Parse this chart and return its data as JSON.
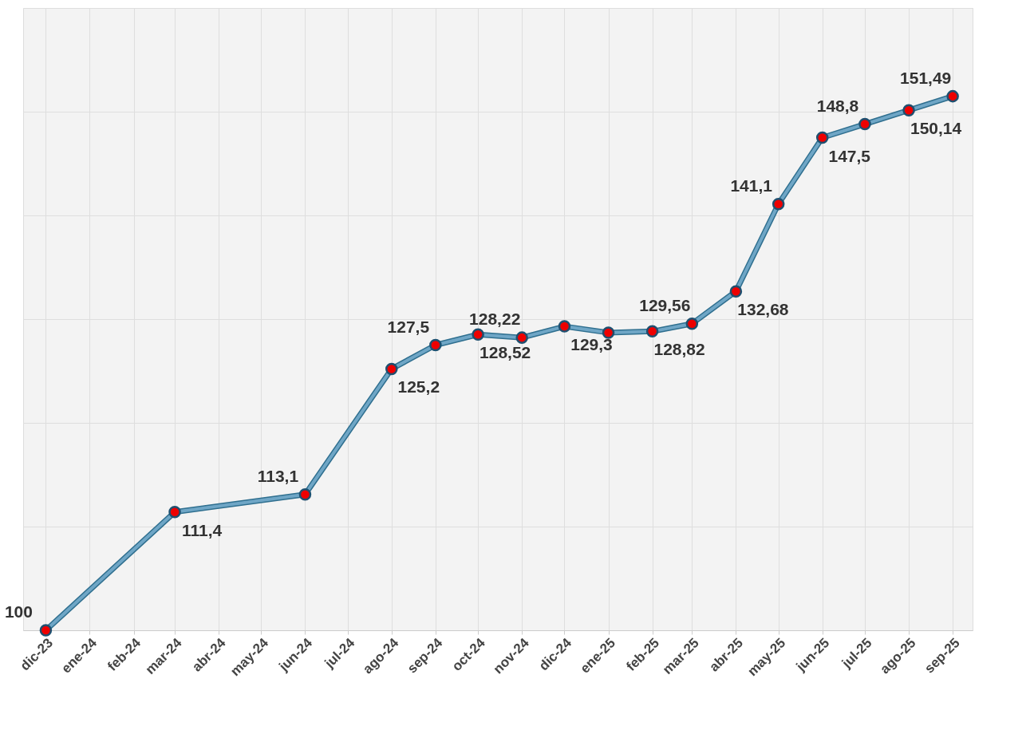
{
  "chart_data": {
    "type": "line",
    "x": [
      "2023-12",
      "2024-03",
      "2024-06",
      "2024-08",
      "2024-09",
      "2024-10",
      "2024-11",
      "2024-12",
      "2025-01",
      "2025-02",
      "2025-03",
      "2025-04",
      "2025-05",
      "2025-06",
      "2025-07",
      "2025-08",
      "2025-09"
    ],
    "series": [
      {
        "color": "#6fa6c6",
        "values": [
          100,
          111.4,
          113.1,
          125.2,
          127.5,
          128.52,
          128.22,
          129.3,
          128.7,
          128.82,
          129.56,
          132.68,
          141.1,
          147.5,
          148.8,
          150.14,
          151.49
        ],
        "value_labels": [
          "100",
          "111,4",
          "113,1",
          "125,2",
          "127,5",
          "128,52",
          "128,22",
          "129,3",
          null,
          "128,82",
          "129,56",
          "132,68",
          "141,1",
          "147,5",
          "148,8",
          "150,14",
          "151,49"
        ]
      }
    ],
    "xlim": [
      "2023-11-15",
      "2025-09-15"
    ],
    "xticks": [
      {
        "value": "2023-12",
        "label": "dic-23"
      },
      {
        "value": "2024-01",
        "label": "ene-24"
      },
      {
        "value": "2024-02",
        "label": "feb-24"
      },
      {
        "value": "2024-03",
        "label": "mar-24"
      },
      {
        "value": "2024-04",
        "label": "abr-24"
      },
      {
        "value": "2024-05",
        "label": "may-24"
      },
      {
        "value": "2024-06",
        "label": "jun-24"
      },
      {
        "value": "2024-07",
        "label": "jul-24"
      },
      {
        "value": "2024-08",
        "label": "ago-24"
      },
      {
        "value": "2024-09",
        "label": "sep-24"
      },
      {
        "value": "2024-10",
        "label": "oct-24"
      },
      {
        "value": "2024-11",
        "label": "nov-24"
      },
      {
        "value": "2024-12",
        "label": "dic-24"
      },
      {
        "value": "2025-01",
        "label": "ene-25"
      },
      {
        "value": "2025-02",
        "label": "feb-25"
      },
      {
        "value": "2025-03",
        "label": "mar-25"
      },
      {
        "value": "2025-04",
        "label": "abr-25"
      },
      {
        "value": "2025-05",
        "label": "may-25"
      },
      {
        "value": "2025-06",
        "label": "jun-25"
      },
      {
        "value": "2025-07",
        "label": "jul-25"
      },
      {
        "value": "2025-08",
        "label": "ago-25"
      },
      {
        "value": "2025-09",
        "label": "sep-25"
      }
    ],
    "ylim": [
      100,
      160
    ],
    "yticks": [
      {
        "value": 100,
        "label": null
      },
      {
        "value": 110,
        "label": null
      },
      {
        "value": 120,
        "label": null
      },
      {
        "value": 130,
        "label": null
      },
      {
        "value": 140,
        "label": null
      },
      {
        "value": 150,
        "label": null
      },
      {
        "value": 160,
        "label": null
      }
    ],
    "grid": true,
    "marker": "circle",
    "line_style": "solid"
  }
}
